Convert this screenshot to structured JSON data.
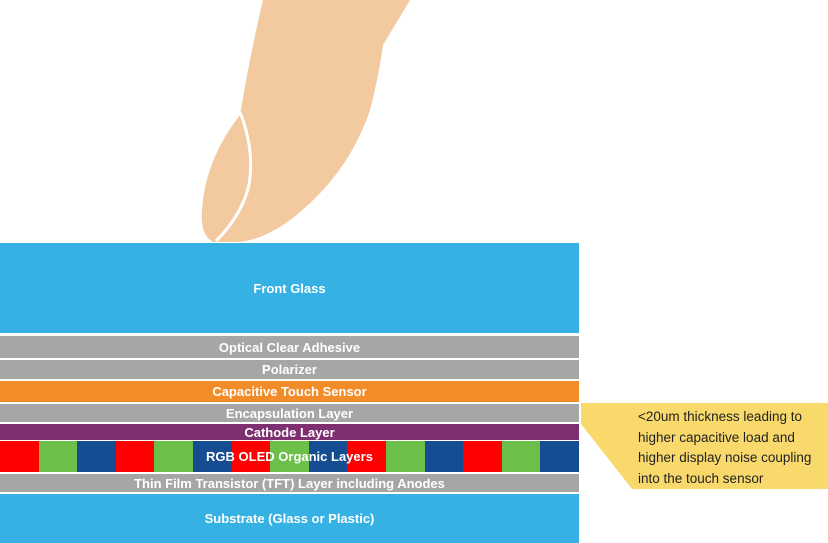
{
  "layers": {
    "front_glass": {
      "label": "Front Glass",
      "color": "#35b2e3"
    },
    "oca": {
      "label": "Optical Clear Adhesive",
      "color": "#a6a6a6"
    },
    "polarizer": {
      "label": "Polarizer",
      "color": "#a6a6a6"
    },
    "touch_sensor": {
      "label": "Capacitive Touch Sensor",
      "color": "#f28c28"
    },
    "encapsulation": {
      "label": "Encapsulation Layer",
      "color": "#a6a6a6"
    },
    "cathode": {
      "label": "Cathode Layer",
      "color": "#7d2f6f"
    },
    "rgb_oled": {
      "label": "RGB OLED Organic Layers",
      "stripe_colors": [
        "#ff0000",
        "#6cc04a",
        "#164c91"
      ]
    },
    "tft": {
      "label": "Thin Film  Transistor (TFT) Layer  including Anodes",
      "color": "#a6a6a6"
    },
    "substrate": {
      "label": "Substrate (Glass or Plastic)",
      "color": "#35b2e3"
    }
  },
  "callout": {
    "lines": [
      "<20um thickness leading to",
      "higher capacitive load and",
      "higher display noise coupling",
      "into the touch sensor"
    ],
    "color": "#f9d96b"
  },
  "finger": {
    "icon": "finger-icon",
    "color": "#f3c9a0"
  }
}
